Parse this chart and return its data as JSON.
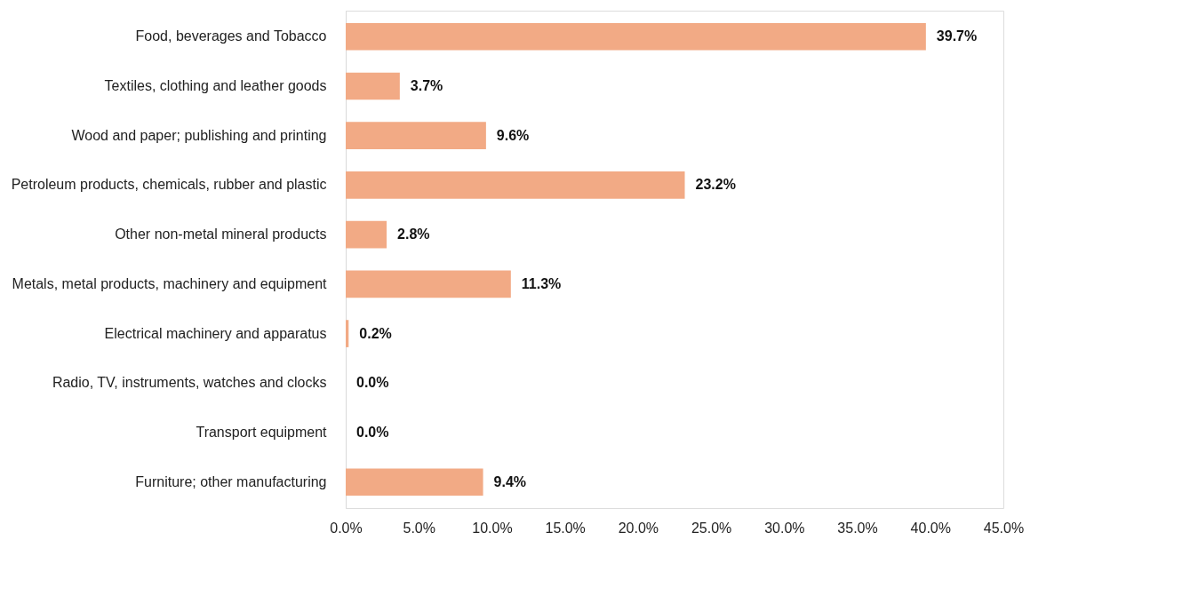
{
  "chart_data": {
    "type": "bar",
    "orientation": "horizontal",
    "categories": [
      "Food, beverages and Tobacco",
      "Textiles, clothing and leather goods",
      "Wood and paper; publishing and printing",
      "Petroleum products, chemicals, rubber and plastic",
      "Other non-metal mineral products",
      "Metals, metal products, machinery and equipment",
      "Electrical machinery and apparatus",
      "Radio, TV, instruments, watches and clocks",
      "Transport equipment",
      "Furniture; other manufacturing"
    ],
    "values": [
      39.7,
      3.7,
      9.6,
      23.2,
      2.8,
      11.3,
      0.2,
      0.0,
      0.0,
      9.4
    ],
    "value_labels": [
      "39.7%",
      "3.7%",
      "9.6%",
      "23.2%",
      "2.8%",
      "11.3%",
      "0.2%",
      "0.0%",
      "0.0%",
      "9.4%"
    ],
    "color": "#f2aa85",
    "xlim": [
      0,
      45
    ],
    "xticks": [
      {
        "value": 0,
        "label": "0.0%"
      },
      {
        "value": 5,
        "label": "5.0%"
      },
      {
        "value": 10,
        "label": "10.0%"
      },
      {
        "value": 15,
        "label": "15.0%"
      },
      {
        "value": 20,
        "label": "20.0%"
      },
      {
        "value": 25,
        "label": "25.0%"
      },
      {
        "value": 30,
        "label": "30.0%"
      },
      {
        "value": 35,
        "label": "35.0%"
      },
      {
        "value": 40,
        "label": "40.0%"
      },
      {
        "value": 45,
        "label": "45.0%"
      }
    ],
    "grid": false
  }
}
